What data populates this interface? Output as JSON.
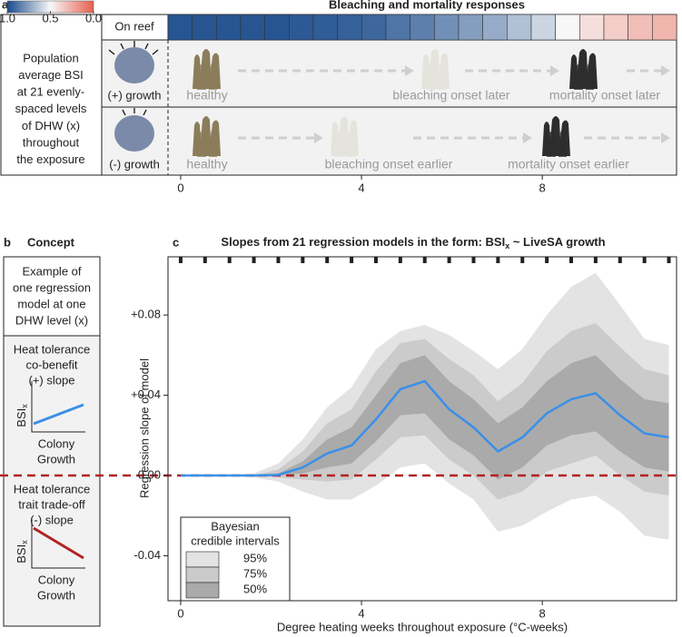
{
  "panel_a": {
    "label": "a",
    "title": "Bleaching and mortality responses",
    "colorbar": {
      "high_color": "#1a4b8c",
      "mid_color": "#f7f7f7",
      "low_color": "#e8604f",
      "ticks": [
        {
          "value": 1,
          "label": "1.0"
        },
        0.5,
        {
          "value": 0,
          "label": "0.0"
        }
      ]
    },
    "side_text": [
      "Population",
      "average BSI",
      "at 21 evenly-",
      "spaced levels",
      "of DHW (x)",
      "throughout",
      "the exposure"
    ],
    "on_reef": "On reef",
    "bsi_values": [
      0.97,
      0.97,
      0.97,
      0.97,
      0.97,
      0.96,
      0.95,
      0.94,
      0.92,
      0.88,
      0.85,
      0.8,
      0.76,
      0.72,
      0.66,
      0.6,
      0.5,
      0.42,
      0.36,
      0.31,
      0.28
    ],
    "rows": [
      {
        "label": "(+) growth",
        "stages": [
          "healthy",
          "bleaching onset later",
          "mortality onset later"
        ]
      },
      {
        "label": "(-) growth",
        "stages": [
          "healthy",
          "bleaching onset earlier",
          "mortality onset earlier"
        ]
      }
    ],
    "xticks": [
      0,
      4,
      8
    ]
  },
  "panel_b": {
    "label": "b",
    "title": "Concept",
    "example": [
      "Example of",
      "one regression",
      "model at one",
      "DHW level (x)"
    ],
    "positive": [
      "Heat tolerance",
      "co-benefit",
      "(+) slope"
    ],
    "negative": [
      "Heat tolerance",
      "trait trade-off",
      "(-) slope"
    ],
    "y_label": "BSI",
    "y_label_sub": "x",
    "x_label": [
      "Colony",
      "Growth"
    ]
  },
  "chart_data": {
    "type": "line",
    "label": "c",
    "title_parts": [
      "Slopes from 21 regression models in the form: BSI",
      "x",
      " ~ LiveSA growth"
    ],
    "x_label": "Degree heating weeks throughout exposure (°C-weeks)",
    "y_label": "Regression slope of model",
    "x": [
      0,
      0.54,
      1.08,
      1.62,
      2.16,
      2.7,
      3.24,
      3.78,
      4.32,
      4.86,
      5.4,
      5.94,
      6.48,
      7.02,
      7.56,
      8.1,
      8.64,
      9.18,
      9.72,
      10.26,
      10.8
    ],
    "series": [
      {
        "name": "median",
        "color": "#3a8fe8",
        "values": [
          0,
          0,
          0,
          0,
          0.0003,
          0.004,
          0.011,
          0.015,
          0.028,
          0.043,
          0.047,
          0.033,
          0.024,
          0.012,
          0.019,
          0.031,
          0.038,
          0.041,
          0.03,
          0.021,
          0.019
        ]
      }
    ],
    "bands": [
      {
        "name": "95%",
        "color": "#e3e3e3",
        "lower": [
          0,
          0,
          0,
          -0.001,
          -0.003,
          -0.008,
          -0.012,
          -0.012,
          -0.005,
          0.004,
          0.006,
          -0.004,
          -0.012,
          -0.028,
          -0.025,
          -0.018,
          -0.012,
          -0.01,
          -0.018,
          -0.03,
          -0.032
        ],
        "upper": [
          0,
          0,
          0,
          0.001,
          0.006,
          0.018,
          0.034,
          0.044,
          0.063,
          0.072,
          0.075,
          0.07,
          0.062,
          0.053,
          0.063,
          0.08,
          0.094,
          0.101,
          0.085,
          0.068,
          0.065
        ]
      },
      {
        "name": "75%",
        "color": "#cbcbcb",
        "lower": [
          0,
          0,
          0,
          0,
          -0.001,
          -0.002,
          -0.003,
          -0.002,
          0.008,
          0.019,
          0.02,
          0.008,
          0,
          -0.012,
          -0.008,
          0.002,
          0.006,
          0.01,
          0,
          -0.008,
          -0.01
        ],
        "upper": [
          0,
          0,
          0,
          0,
          0.003,
          0.012,
          0.026,
          0.033,
          0.052,
          0.066,
          0.068,
          0.058,
          0.05,
          0.037,
          0.046,
          0.062,
          0.072,
          0.076,
          0.064,
          0.053,
          0.05
        ]
      },
      {
        "name": "50%",
        "color": "#aaaaaa",
        "lower": [
          0,
          0,
          0,
          0,
          0,
          0.001,
          0.004,
          0.006,
          0.017,
          0.03,
          0.031,
          0.018,
          0.01,
          -0.002,
          0.004,
          0.015,
          0.02,
          0.022,
          0.012,
          0.004,
          0.002
        ],
        "upper": [
          0,
          0,
          0,
          0,
          0.001,
          0.007,
          0.018,
          0.024,
          0.04,
          0.056,
          0.06,
          0.047,
          0.038,
          0.026,
          0.034,
          0.047,
          0.056,
          0.06,
          0.048,
          0.038,
          0.036
        ]
      }
    ],
    "legend_title": [
      "Bayesian",
      "credible intervals"
    ],
    "legend": "bottom-left",
    "zero_line_color": "#b22222",
    "xlim": [
      -0.28,
      10.97
    ],
    "ylim": [
      -0.0624,
      0.109
    ],
    "xticks": [
      0,
      4,
      8
    ],
    "yticks": [
      {
        "value": -0.04,
        "label": "-0.04"
      },
      {
        "value": 0,
        "label": "0.00"
      },
      {
        "value": 0.04,
        "label": "+0.04"
      },
      {
        "value": 0.08,
        "label": "+0.08"
      }
    ]
  }
}
